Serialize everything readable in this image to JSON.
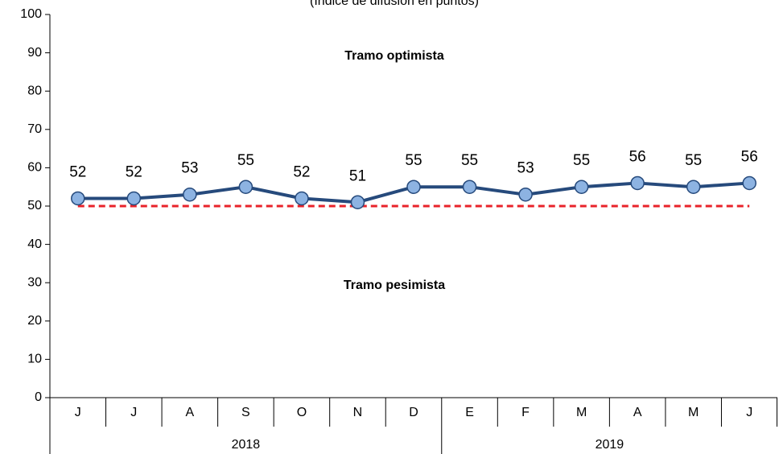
{
  "chart_data": {
    "type": "line",
    "subtitle": "(Índice de difusión en puntos)",
    "categories": [
      "J",
      "J",
      "A",
      "S",
      "O",
      "N",
      "D",
      "E",
      "F",
      "M",
      "A",
      "M",
      "J"
    ],
    "groups": [
      {
        "label": "2018",
        "size": 7
      },
      {
        "label": "2019",
        "size": 6
      }
    ],
    "values": [
      52,
      52,
      53,
      55,
      52,
      51,
      55,
      55,
      53,
      55,
      56,
      55,
      56
    ],
    "color": "#264a7c",
    "marker_color": "#8db3e2",
    "reference_line": 50,
    "reference_color": "#e8232a",
    "annotations": [
      "Tramo optimista",
      "Tramo pesimista"
    ],
    "ylim": [
      0,
      100
    ],
    "yticks": [
      0,
      10,
      20,
      30,
      40,
      50,
      60,
      70,
      80,
      90,
      100
    ]
  }
}
